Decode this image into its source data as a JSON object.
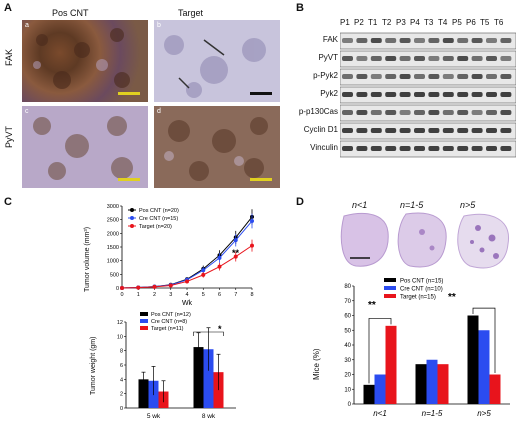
{
  "panelA": {
    "letter": "A",
    "col_headers": [
      "Pos CNT",
      "Target"
    ],
    "row_labels": [
      "FAK",
      "PyVT"
    ],
    "sub_labels": [
      "a",
      "b",
      "c",
      "d"
    ]
  },
  "panelB": {
    "letter": "B",
    "lanes": [
      "P1",
      "P2",
      "T1",
      "T2",
      "P3",
      "P4",
      "T3",
      "T4",
      "P5",
      "P6",
      "T5",
      "T6"
    ],
    "proteins": [
      "FAK",
      "PyVT",
      "p-Pyk2",
      "Pyk2",
      "p-p130Cas",
      "Cyclin D1",
      "Vinculin"
    ]
  },
  "panelC": {
    "letter": "C",
    "volume_ylabel": "Tumor volume (mm³)",
    "volume_xlabel": "Wk",
    "weight_ylabel": "Tumor weight (gm)",
    "significance": "**",
    "weight_significance": "*"
  },
  "panelD": {
    "letter": "D",
    "image_labels": [
      "n<1",
      "n=1-5",
      "n>5"
    ],
    "ylabel": "Mice (%)",
    "significance_left": "**",
    "significance_right": "**"
  },
  "colors": {
    "pos": "#000000",
    "cre": "#2b4cf0",
    "target": "#e8141c"
  },
  "chart_data": [
    {
      "type": "line",
      "x": [
        0,
        1,
        2,
        3,
        4,
        5,
        6,
        7,
        8
      ],
      "xlim": [
        0,
        8
      ],
      "ylim": [
        0,
        3000
      ],
      "yticks": [
        0,
        500,
        1000,
        1500,
        2000,
        2500,
        3000
      ],
      "series": [
        {
          "name": "Pos CNT (n=20)",
          "values": [
            0,
            20,
            50,
            120,
            320,
            700,
            1200,
            1850,
            2600
          ],
          "err": [
            0,
            10,
            20,
            40,
            80,
            120,
            180,
            240,
            280
          ]
        },
        {
          "name": "Cre CNT (n=15)",
          "values": [
            0,
            20,
            50,
            110,
            300,
            650,
            1100,
            1750,
            2450
          ],
          "err": [
            0,
            10,
            20,
            40,
            80,
            120,
            180,
            230,
            270
          ]
        },
        {
          "name": "Target (n=20)",
          "values": [
            0,
            15,
            40,
            90,
            240,
            480,
            780,
            1150,
            1550
          ],
          "err": [
            0,
            10,
            15,
            30,
            60,
            100,
            140,
            180,
            220
          ]
        }
      ]
    },
    {
      "type": "bar",
      "categories": [
        "5 wk",
        "8 wk"
      ],
      "ylim": [
        0,
        12
      ],
      "yticks": [
        0,
        2,
        4,
        6,
        8,
        10,
        12
      ],
      "series": [
        {
          "name": "Pos CNT (n=12)",
          "values": [
            4.0,
            8.5
          ],
          "err": [
            1.0,
            2.0
          ]
        },
        {
          "name": "Cre CNT (n=8)",
          "values": [
            3.8,
            8.2
          ],
          "err": [
            2.0,
            3.0
          ]
        },
        {
          "name": "Target (n=11)",
          "values": [
            2.3,
            5.0
          ],
          "err": [
            1.5,
            2.5
          ]
        }
      ]
    },
    {
      "type": "bar",
      "categories": [
        "n<1",
        "n=1-5",
        "n>5"
      ],
      "ylim": [
        0,
        80
      ],
      "yticks": [
        0,
        10,
        20,
        30,
        40,
        50,
        60,
        70,
        80
      ],
      "series": [
        {
          "name": "Pos CNT (n=15)",
          "values": [
            13,
            27,
            60
          ]
        },
        {
          "name": "Cre CNT (n=10)",
          "values": [
            20,
            30,
            50
          ]
        },
        {
          "name": "Target (n=15)",
          "values": [
            53,
            27,
            20
          ]
        }
      ]
    }
  ]
}
